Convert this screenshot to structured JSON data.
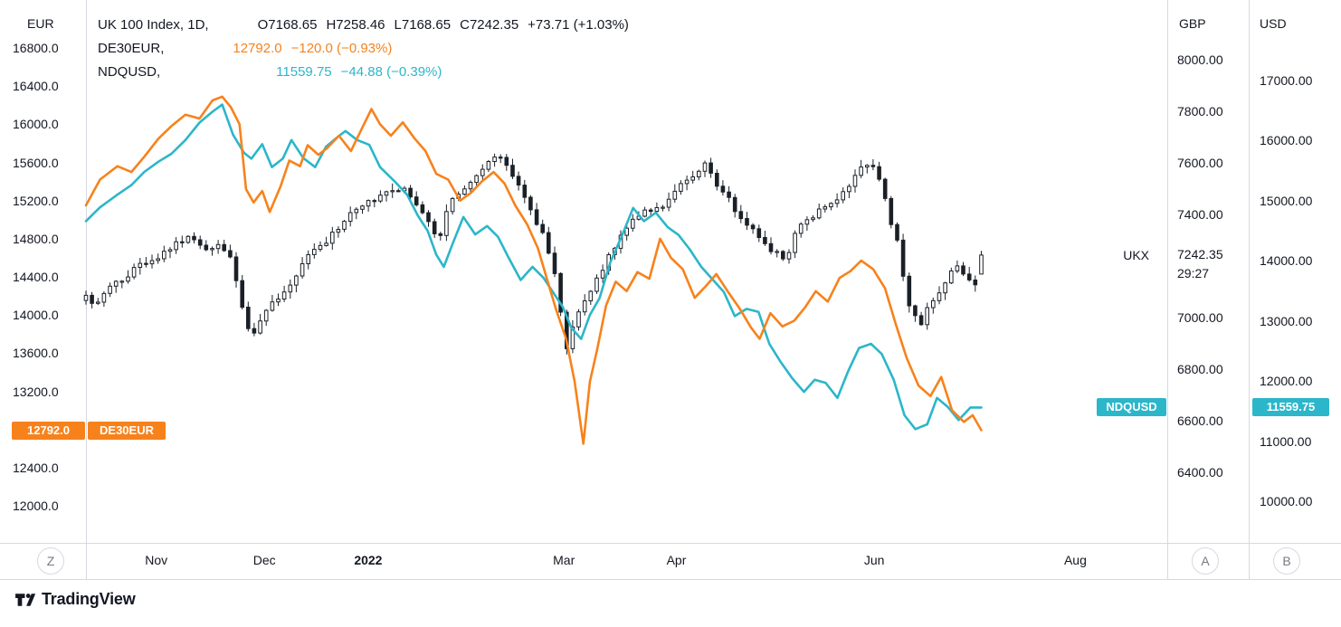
{
  "legend": {
    "main": {
      "title": "UK 100 Index, 1D,",
      "o": "O7168.65",
      "h": "H7258.46",
      "l": "L7168.65",
      "c": "C7242.35",
      "change": "+73.71 (+1.03%)"
    },
    "de30eur": {
      "title": "DE30EUR,",
      "value": "12792.0",
      "change": "−120.0 (−0.93%)"
    },
    "ndqusd": {
      "title": "NDQUSD,",
      "value": "11559.75",
      "change": "−44.88 (−0.39%)"
    }
  },
  "axis_headers": {
    "left": "EUR",
    "gbp": "GBP",
    "usd": "USD"
  },
  "price_labels": {
    "de30eur_value": "12792.0",
    "de30eur_tag": "DE30EUR",
    "ukx_tag": "UKX",
    "ukx_value": "7242.35",
    "ukx_countdown": "29:27",
    "ndqusd_tag": "NDQUSD",
    "ndqusd_value": "11559.75"
  },
  "toolbar": {
    "timezone_button": "Z",
    "gbp_axis_button": "A",
    "usd_axis_button": "B"
  },
  "branding": {
    "logo": "TradingView"
  },
  "colors": {
    "orange": "#f7821c",
    "cyan": "#2cb6c9",
    "text": "#131722",
    "grid": "#d6d9e0"
  },
  "chart_data": {
    "type": "mixed",
    "title": "UK 100 Index, 1D with DE30EUR and NDQUSD overlays",
    "x_domain": "Oct 2021 - Aug 2022, daily bars, t = fraction of plot width",
    "x_ticks": [
      {
        "label": "Nov",
        "t": 0.065
      },
      {
        "label": "Dec",
        "t": 0.165
      },
      {
        "label": "2022",
        "t": 0.261,
        "year": true
      },
      {
        "label": "Mar",
        "t": 0.442
      },
      {
        "label": "Apr",
        "t": 0.546
      },
      {
        "label": "Jun",
        "t": 0.729
      },
      {
        "label": "Aug",
        "t": 0.915
      }
    ],
    "axes": {
      "EUR": {
        "side": "left",
        "decimals": 1,
        "ticks": [
          16800,
          16400,
          16000,
          15600,
          15200,
          14800,
          14400,
          14000,
          13600,
          13200,
          12800,
          12400,
          12000
        ]
      },
      "GBP": {
        "side": "right",
        "decimals": 2,
        "ticks": [
          8000,
          7800,
          7600,
          7400,
          7200,
          7000,
          6800,
          6600,
          6400
        ]
      },
      "USD": {
        "side": "right",
        "decimals": 2,
        "ticks": [
          17000,
          16000,
          15000,
          14000,
          13000,
          12000,
          11000,
          10000
        ]
      }
    },
    "series": [
      {
        "id": "UKX",
        "name": "UK 100 Index",
        "timeframe": "1D",
        "type": "candlestick",
        "scale": "GBP",
        "last": 7242.35,
        "change": 73.71,
        "change_pct": 1.03,
        "last_bar": {
          "o": 7168.65,
          "h": 7258.46,
          "l": 7168.65,
          "c": 7242.35
        },
        "closes": [
          [
            0.0,
            7080
          ],
          [
            0.011,
            7050
          ],
          [
            0.021,
            7120
          ],
          [
            0.033,
            7150
          ],
          [
            0.046,
            7190
          ],
          [
            0.059,
            7220
          ],
          [
            0.071,
            7250
          ],
          [
            0.084,
            7290
          ],
          [
            0.096,
            7310
          ],
          [
            0.109,
            7260
          ],
          [
            0.121,
            7280
          ],
          [
            0.134,
            7230
          ],
          [
            0.145,
            7040
          ],
          [
            0.153,
            6910
          ],
          [
            0.163,
            7000
          ],
          [
            0.173,
            7060
          ],
          [
            0.184,
            7110
          ],
          [
            0.195,
            7170
          ],
          [
            0.205,
            7230
          ],
          [
            0.218,
            7280
          ],
          [
            0.228,
            7320
          ],
          [
            0.24,
            7380
          ],
          [
            0.251,
            7420
          ],
          [
            0.262,
            7450
          ],
          [
            0.274,
            7470
          ],
          [
            0.285,
            7490
          ],
          [
            0.295,
            7500
          ],
          [
            0.305,
            7430
          ],
          [
            0.316,
            7370
          ],
          [
            0.326,
            7290
          ],
          [
            0.337,
            7460
          ],
          [
            0.347,
            7480
          ],
          [
            0.36,
            7550
          ],
          [
            0.372,
            7600
          ],
          [
            0.382,
            7630
          ],
          [
            0.393,
            7560
          ],
          [
            0.404,
            7480
          ],
          [
            0.414,
            7390
          ],
          [
            0.424,
            7320
          ],
          [
            0.435,
            7150
          ],
          [
            0.444,
            6880
          ],
          [
            0.454,
            7000
          ],
          [
            0.464,
            7090
          ],
          [
            0.475,
            7160
          ],
          [
            0.485,
            7250
          ],
          [
            0.496,
            7320
          ],
          [
            0.508,
            7390
          ],
          [
            0.519,
            7410
          ],
          [
            0.53,
            7430
          ],
          [
            0.541,
            7460
          ],
          [
            0.552,
            7520
          ],
          [
            0.563,
            7560
          ],
          [
            0.573,
            7590
          ],
          [
            0.583,
            7520
          ],
          [
            0.594,
            7470
          ],
          [
            0.605,
            7380
          ],
          [
            0.615,
            7350
          ],
          [
            0.625,
            7300
          ],
          [
            0.636,
            7250
          ],
          [
            0.647,
            7230
          ],
          [
            0.657,
            7330
          ],
          [
            0.667,
            7380
          ],
          [
            0.678,
            7410
          ],
          [
            0.689,
            7440
          ],
          [
            0.699,
            7480
          ],
          [
            0.709,
            7540
          ],
          [
            0.72,
            7590
          ],
          [
            0.731,
            7580
          ],
          [
            0.741,
            7420
          ],
          [
            0.751,
            7280
          ],
          [
            0.761,
            7050
          ],
          [
            0.772,
            6980
          ],
          [
            0.782,
            7060
          ],
          [
            0.792,
            7120
          ],
          [
            0.803,
            7210
          ],
          [
            0.814,
            7170
          ],
          [
            0.822,
            7120
          ],
          [
            0.828,
            7242.35
          ]
        ]
      },
      {
        "id": "DE30EUR",
        "name": "DE30EUR",
        "type": "line",
        "scale": "EUR",
        "color": "#f7821c",
        "last": 12792.0,
        "change": -120.0,
        "change_pct": -0.93,
        "points": [
          [
            0.0,
            15150
          ],
          [
            0.013,
            15420
          ],
          [
            0.029,
            15560
          ],
          [
            0.042,
            15500
          ],
          [
            0.054,
            15660
          ],
          [
            0.067,
            15850
          ],
          [
            0.079,
            15980
          ],
          [
            0.092,
            16100
          ],
          [
            0.105,
            16060
          ],
          [
            0.117,
            16250
          ],
          [
            0.126,
            16290
          ],
          [
            0.134,
            16180
          ],
          [
            0.142,
            16000
          ],
          [
            0.148,
            15320
          ],
          [
            0.155,
            15180
          ],
          [
            0.163,
            15300
          ],
          [
            0.17,
            15080
          ],
          [
            0.18,
            15350
          ],
          [
            0.188,
            15620
          ],
          [
            0.198,
            15560
          ],
          [
            0.205,
            15780
          ],
          [
            0.215,
            15680
          ],
          [
            0.223,
            15750
          ],
          [
            0.234,
            15880
          ],
          [
            0.245,
            15720
          ],
          [
            0.255,
            15950
          ],
          [
            0.264,
            16160
          ],
          [
            0.272,
            16000
          ],
          [
            0.282,
            15880
          ],
          [
            0.293,
            16020
          ],
          [
            0.304,
            15850
          ],
          [
            0.314,
            15720
          ],
          [
            0.324,
            15480
          ],
          [
            0.335,
            15420
          ],
          [
            0.346,
            15200
          ],
          [
            0.356,
            15280
          ],
          [
            0.366,
            15400
          ],
          [
            0.377,
            15500
          ],
          [
            0.387,
            15380
          ],
          [
            0.397,
            15150
          ],
          [
            0.408,
            14950
          ],
          [
            0.418,
            14700
          ],
          [
            0.427,
            14350
          ],
          [
            0.435,
            14050
          ],
          [
            0.444,
            13750
          ],
          [
            0.452,
            13300
          ],
          [
            0.46,
            12650
          ],
          [
            0.466,
            13300
          ],
          [
            0.473,
            13650
          ],
          [
            0.481,
            14100
          ],
          [
            0.49,
            14350
          ],
          [
            0.5,
            14250
          ],
          [
            0.51,
            14450
          ],
          [
            0.521,
            14380
          ],
          [
            0.531,
            14800
          ],
          [
            0.541,
            14600
          ],
          [
            0.552,
            14480
          ],
          [
            0.563,
            14180
          ],
          [
            0.573,
            14300
          ],
          [
            0.583,
            14430
          ],
          [
            0.594,
            14240
          ],
          [
            0.605,
            14060
          ],
          [
            0.615,
            13870
          ],
          [
            0.623,
            13750
          ],
          [
            0.633,
            14020
          ],
          [
            0.644,
            13880
          ],
          [
            0.655,
            13940
          ],
          [
            0.665,
            14080
          ],
          [
            0.675,
            14250
          ],
          [
            0.686,
            14140
          ],
          [
            0.697,
            14390
          ],
          [
            0.707,
            14460
          ],
          [
            0.717,
            14570
          ],
          [
            0.728,
            14480
          ],
          [
            0.739,
            14280
          ],
          [
            0.749,
            13900
          ],
          [
            0.759,
            13550
          ],
          [
            0.77,
            13260
          ],
          [
            0.781,
            13150
          ],
          [
            0.791,
            13350
          ],
          [
            0.801,
            13000
          ],
          [
            0.812,
            12880
          ],
          [
            0.82,
            12950
          ],
          [
            0.828,
            12792
          ]
        ]
      },
      {
        "id": "NDQUSD",
        "name": "NDQUSD",
        "type": "line",
        "scale": "USD",
        "color": "#2cb6c9",
        "last": 11559.75,
        "change": -44.88,
        "change_pct": -0.39,
        "points": [
          [
            0.0,
            14660
          ],
          [
            0.013,
            14890
          ],
          [
            0.029,
            15100
          ],
          [
            0.042,
            15260
          ],
          [
            0.054,
            15480
          ],
          [
            0.067,
            15650
          ],
          [
            0.079,
            15780
          ],
          [
            0.092,
            16010
          ],
          [
            0.105,
            16300
          ],
          [
            0.117,
            16480
          ],
          [
            0.126,
            16600
          ],
          [
            0.136,
            16100
          ],
          [
            0.146,
            15800
          ],
          [
            0.153,
            15700
          ],
          [
            0.163,
            15940
          ],
          [
            0.172,
            15560
          ],
          [
            0.182,
            15700
          ],
          [
            0.19,
            16010
          ],
          [
            0.201,
            15710
          ],
          [
            0.212,
            15560
          ],
          [
            0.222,
            15900
          ],
          [
            0.232,
            16050
          ],
          [
            0.24,
            16160
          ],
          [
            0.251,
            16010
          ],
          [
            0.262,
            15930
          ],
          [
            0.272,
            15560
          ],
          [
            0.285,
            15330
          ],
          [
            0.297,
            15100
          ],
          [
            0.307,
            14750
          ],
          [
            0.316,
            14500
          ],
          [
            0.324,
            14100
          ],
          [
            0.331,
            13900
          ],
          [
            0.339,
            14280
          ],
          [
            0.349,
            14730
          ],
          [
            0.36,
            14440
          ],
          [
            0.371,
            14580
          ],
          [
            0.381,
            14400
          ],
          [
            0.391,
            14050
          ],
          [
            0.402,
            13680
          ],
          [
            0.413,
            13900
          ],
          [
            0.423,
            13720
          ],
          [
            0.433,
            13450
          ],
          [
            0.441,
            13230
          ],
          [
            0.449,
            12880
          ],
          [
            0.458,
            12700
          ],
          [
            0.466,
            13100
          ],
          [
            0.475,
            13380
          ],
          [
            0.485,
            13980
          ],
          [
            0.496,
            14430
          ],
          [
            0.506,
            14880
          ],
          [
            0.516,
            14660
          ],
          [
            0.527,
            14800
          ],
          [
            0.538,
            14560
          ],
          [
            0.548,
            14430
          ],
          [
            0.558,
            14200
          ],
          [
            0.569,
            13900
          ],
          [
            0.58,
            13680
          ],
          [
            0.59,
            13480
          ],
          [
            0.6,
            13080
          ],
          [
            0.611,
            13200
          ],
          [
            0.622,
            13150
          ],
          [
            0.632,
            12620
          ],
          [
            0.642,
            12330
          ],
          [
            0.653,
            12050
          ],
          [
            0.664,
            11820
          ],
          [
            0.674,
            12020
          ],
          [
            0.684,
            11970
          ],
          [
            0.695,
            11720
          ],
          [
            0.705,
            12170
          ],
          [
            0.715,
            12550
          ],
          [
            0.726,
            12620
          ],
          [
            0.736,
            12450
          ],
          [
            0.747,
            12020
          ],
          [
            0.757,
            11430
          ],
          [
            0.767,
            11200
          ],
          [
            0.778,
            11280
          ],
          [
            0.787,
            11720
          ],
          [
            0.797,
            11570
          ],
          [
            0.807,
            11350
          ],
          [
            0.818,
            11560
          ],
          [
            0.828,
            11559.75
          ]
        ]
      }
    ]
  }
}
